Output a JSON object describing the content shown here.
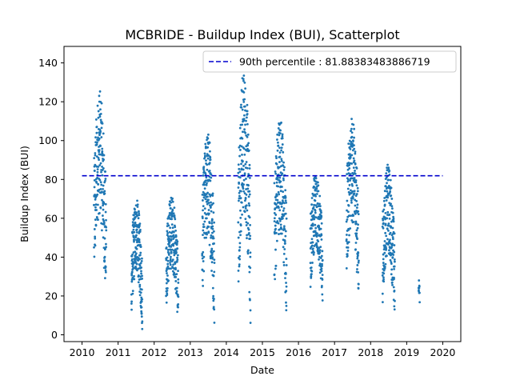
{
  "chart_data": {
    "type": "scatter",
    "title": "MCBRIDE - Buildup Index (BUI), Scatterplot",
    "xlabel": "Date",
    "ylabel": "Buildup Index (BUI)",
    "xlim": [
      2009.5,
      2020.5
    ],
    "ylim": [
      -3.5,
      148.5
    ],
    "xticks": [
      "2010",
      "2011",
      "2012",
      "2013",
      "2014",
      "2015",
      "2016",
      "2017",
      "2018",
      "2019",
      "2020"
    ],
    "yticks": [
      "0",
      "20",
      "40",
      "60",
      "80",
      "100",
      "120",
      "140"
    ],
    "grid": false,
    "legend": {
      "placement": "top-right",
      "label": "90th percentile : 81.88383483886719"
    },
    "reference_line": {
      "value": 81.88383483886719,
      "x_range": [
        2010,
        2020
      ],
      "style": "dashed",
      "color": "#0000cd"
    },
    "marker_color": "#1f77b4",
    "season_clusters_approx": [
      {
        "x_start": 2010.33,
        "x_end": 2010.67,
        "y_min": 12,
        "y_max": 129
      },
      {
        "x_start": 2011.37,
        "x_end": 2011.67,
        "y_min": 3,
        "y_max": 72
      },
      {
        "x_start": 2012.33,
        "x_end": 2012.67,
        "y_min": 5,
        "y_max": 74
      },
      {
        "x_start": 2013.33,
        "x_end": 2013.67,
        "y_min": 6,
        "y_max": 108
      },
      {
        "x_start": 2014.33,
        "x_end": 2014.67,
        "y_min": 6,
        "y_max": 140
      },
      {
        "x_start": 2015.33,
        "x_end": 2015.67,
        "y_min": 6,
        "y_max": 117
      },
      {
        "x_start": 2016.33,
        "x_end": 2016.67,
        "y_min": 15,
        "y_max": 86
      },
      {
        "x_start": 2017.33,
        "x_end": 2017.67,
        "y_min": 16,
        "y_max": 114
      },
      {
        "x_start": 2018.33,
        "x_end": 2018.67,
        "y_min": 6,
        "y_max": 90
      },
      {
        "x_start": 2019.33,
        "x_end": 2019.36,
        "y_min": 16,
        "y_max": 29
      }
    ]
  }
}
